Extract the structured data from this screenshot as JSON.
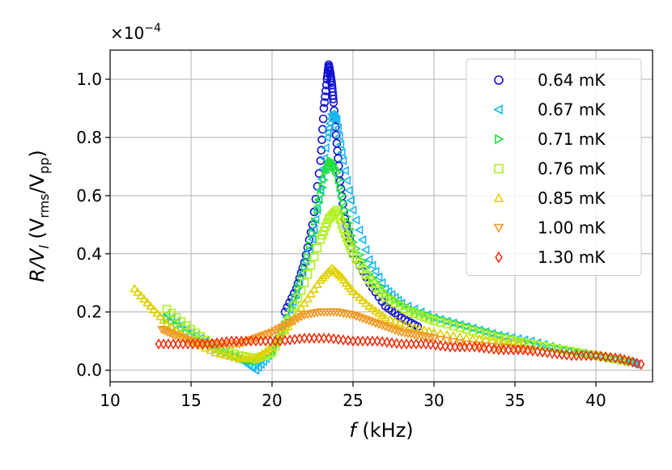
{
  "chart_data": {
    "type": "scatter",
    "title": "",
    "xlabel": {
      "symbol": "f",
      "unit": " (kHz)"
    },
    "ylabel": {
      "lhs": "R/V",
      "lhs_sub": "l",
      "unit_open": " (V",
      "unit_sub1": "rms",
      "unit_mid": "/V",
      "unit_sub2": "pp",
      "unit_close": ")"
    },
    "y_multiplier": {
      "base": "×10",
      "exp": "−4"
    },
    "xlim": [
      10,
      43.5
    ],
    "ylim": [
      -0.04,
      1.1
    ],
    "xticks": [
      10,
      15,
      20,
      25,
      30,
      35,
      40
    ],
    "xtick_labels": [
      "10",
      "15",
      "20",
      "25",
      "30",
      "35",
      "40"
    ],
    "yticks": [
      0.0,
      0.2,
      0.4,
      0.6,
      0.8,
      1.0
    ],
    "ytick_labels": [
      "0.0",
      "0.2",
      "0.4",
      "0.6",
      "0.8",
      "1.0"
    ],
    "grid": true,
    "legend_position": "upper-right",
    "series": [
      {
        "name": "0.64 mK",
        "color": "#1010d0",
        "marker": "circle",
        "x": [
          20.8,
          21.5,
          22.0,
          22.5,
          23.0,
          23.2,
          23.4,
          23.5,
          23.6,
          23.7,
          23.8,
          24.0,
          24.2,
          24.5,
          25.0,
          26.0,
          27.0,
          28.0,
          29.0
        ],
        "y": [
          0.2,
          0.28,
          0.37,
          0.5,
          0.72,
          0.9,
          1.0,
          1.05,
          1.02,
          0.98,
          0.92,
          0.78,
          0.65,
          0.52,
          0.4,
          0.3,
          0.22,
          0.18,
          0.15
        ]
      },
      {
        "name": "0.67 mK",
        "color": "#18b8f0",
        "marker": "triangle-left",
        "x": [
          13.5,
          15.0,
          16.5,
          18.0,
          19.0,
          19.8,
          20.5,
          21.5,
          22.5,
          23.0,
          23.4,
          23.7,
          24.0,
          24.4,
          25.0,
          26.0,
          27.0,
          28.0,
          30.0,
          32.0,
          34.0,
          36.0,
          38.0,
          40.0,
          42.0,
          42.5
        ],
        "y": [
          0.19,
          0.13,
          0.08,
          0.04,
          0.0,
          0.05,
          0.13,
          0.26,
          0.45,
          0.62,
          0.8,
          0.88,
          0.86,
          0.72,
          0.55,
          0.38,
          0.28,
          0.23,
          0.18,
          0.15,
          0.12,
          0.1,
          0.07,
          0.05,
          0.03,
          0.02
        ]
      },
      {
        "name": "0.71 mK",
        "color": "#20e040",
        "marker": "triangle-right",
        "x": [
          13.5,
          15.0,
          16.5,
          18.0,
          19.0,
          20.0,
          21.0,
          22.0,
          22.8,
          23.3,
          23.6,
          24.0,
          24.5,
          25.0,
          26.0,
          27.0,
          28.5,
          30.0,
          32.0,
          34.0,
          36.0,
          38.0,
          40.0,
          42.0
        ],
        "y": [
          0.18,
          0.12,
          0.07,
          0.04,
          0.03,
          0.06,
          0.18,
          0.35,
          0.55,
          0.68,
          0.72,
          0.68,
          0.55,
          0.44,
          0.33,
          0.26,
          0.21,
          0.18,
          0.15,
          0.12,
          0.09,
          0.07,
          0.05,
          0.03
        ]
      },
      {
        "name": "0.76 mK",
        "color": "#b0f020",
        "marker": "square",
        "x": [
          13.5,
          15.0,
          16.5,
          18.0,
          19.0,
          20.0,
          21.0,
          22.0,
          23.0,
          23.5,
          24.0,
          24.5,
          25.0,
          26.0,
          27.0,
          28.5,
          30.0,
          32.0,
          34.0,
          36.0,
          38.0,
          40.0,
          42.0
        ],
        "y": [
          0.21,
          0.14,
          0.08,
          0.05,
          0.04,
          0.06,
          0.17,
          0.3,
          0.45,
          0.52,
          0.55,
          0.47,
          0.4,
          0.31,
          0.25,
          0.2,
          0.17,
          0.14,
          0.11,
          0.09,
          0.07,
          0.05,
          0.03
        ]
      },
      {
        "name": "0.85 mK",
        "color": "#e0d000",
        "marker": "triangle-up",
        "x": [
          11.5,
          12.5,
          13.5,
          15.0,
          16.5,
          18.0,
          19.0,
          20.0,
          21.0,
          22.0,
          23.0,
          23.7,
          24.3,
          25.0,
          26.0,
          27.0,
          28.5,
          30.0,
          32.0,
          34.0,
          35.5
        ],
        "y": [
          0.28,
          0.22,
          0.16,
          0.1,
          0.06,
          0.04,
          0.04,
          0.08,
          0.15,
          0.23,
          0.31,
          0.35,
          0.32,
          0.27,
          0.22,
          0.18,
          0.15,
          0.13,
          0.11,
          0.1,
          0.09
        ]
      },
      {
        "name": "1.00 mK",
        "color": "#f09820",
        "marker": "triangle-down",
        "x": [
          13.2,
          14.0,
          15.0,
          16.0,
          17.0,
          18.0,
          19.0,
          20.0,
          21.0,
          22.0,
          23.0,
          24.0,
          25.0,
          26.0,
          27.0,
          28.0,
          29.0,
          30.0,
          32.0,
          34.0,
          36.0
        ],
        "y": [
          0.14,
          0.12,
          0.1,
          0.09,
          0.09,
          0.09,
          0.11,
          0.13,
          0.16,
          0.19,
          0.2,
          0.2,
          0.19,
          0.17,
          0.15,
          0.13,
          0.12,
          0.11,
          0.09,
          0.08,
          0.07
        ]
      },
      {
        "name": "1.30 mK",
        "color": "#f03010",
        "marker": "diamond",
        "x": [
          13.0,
          14.5,
          16.0,
          17.5,
          19.0,
          20.5,
          22.0,
          23.5,
          25.0,
          26.5,
          28.0,
          29.5,
          31.0,
          32.5,
          34.0,
          35.5,
          37.0,
          38.5,
          40.0,
          41.5,
          42.8
        ],
        "y": [
          0.09,
          0.09,
          0.09,
          0.1,
          0.1,
          0.1,
          0.11,
          0.11,
          0.1,
          0.1,
          0.09,
          0.09,
          0.08,
          0.08,
          0.07,
          0.07,
          0.06,
          0.05,
          0.05,
          0.04,
          0.02
        ]
      }
    ]
  }
}
